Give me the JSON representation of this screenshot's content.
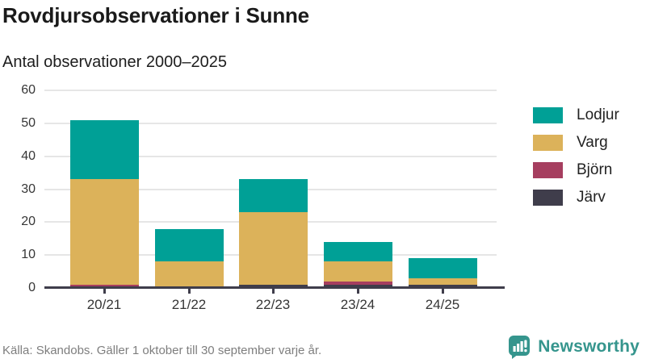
{
  "header": {
    "title": "Rovdjursobservationer i Sunne",
    "subtitle": "Antal observationer 2000–2025"
  },
  "chart_data": {
    "type": "bar",
    "stacked": true,
    "categories": [
      "20/21",
      "21/22",
      "22/23",
      "23/24",
      "24/25"
    ],
    "series": [
      {
        "name": "Järv",
        "color": "#3f3d4b",
        "values": [
          0,
          0,
          1,
          1,
          1
        ]
      },
      {
        "name": "Björn",
        "color": "#a63e5f",
        "values": [
          1,
          0,
          0,
          1,
          0
        ]
      },
      {
        "name": "Varg",
        "color": "#dcb25a",
        "values": [
          32,
          8,
          22,
          6,
          2
        ]
      },
      {
        "name": "Lodjur",
        "color": "#00a096",
        "values": [
          18,
          10,
          10,
          6,
          6
        ]
      }
    ],
    "totals": [
      51,
      18,
      33,
      14,
      9
    ],
    "legend": [
      "Lodjur",
      "Varg",
      "Björn",
      "Järv"
    ],
    "legend_position": "right",
    "grid": true,
    "ylim": [
      0,
      60
    ],
    "yticks": [
      0,
      10,
      20,
      30,
      40,
      50,
      60
    ],
    "title": "Rovdjursobservationer i Sunne",
    "xlabel": "",
    "ylabel": ""
  },
  "colors": {
    "axis": "#3f3d4b",
    "gridline": "#e6e6e6",
    "accent": "#35958d"
  },
  "footer": {
    "source": "Källa: Skandobs. Gäller 1 oktober till 30 september varje år."
  },
  "brand": {
    "name": "Newsworthy"
  }
}
